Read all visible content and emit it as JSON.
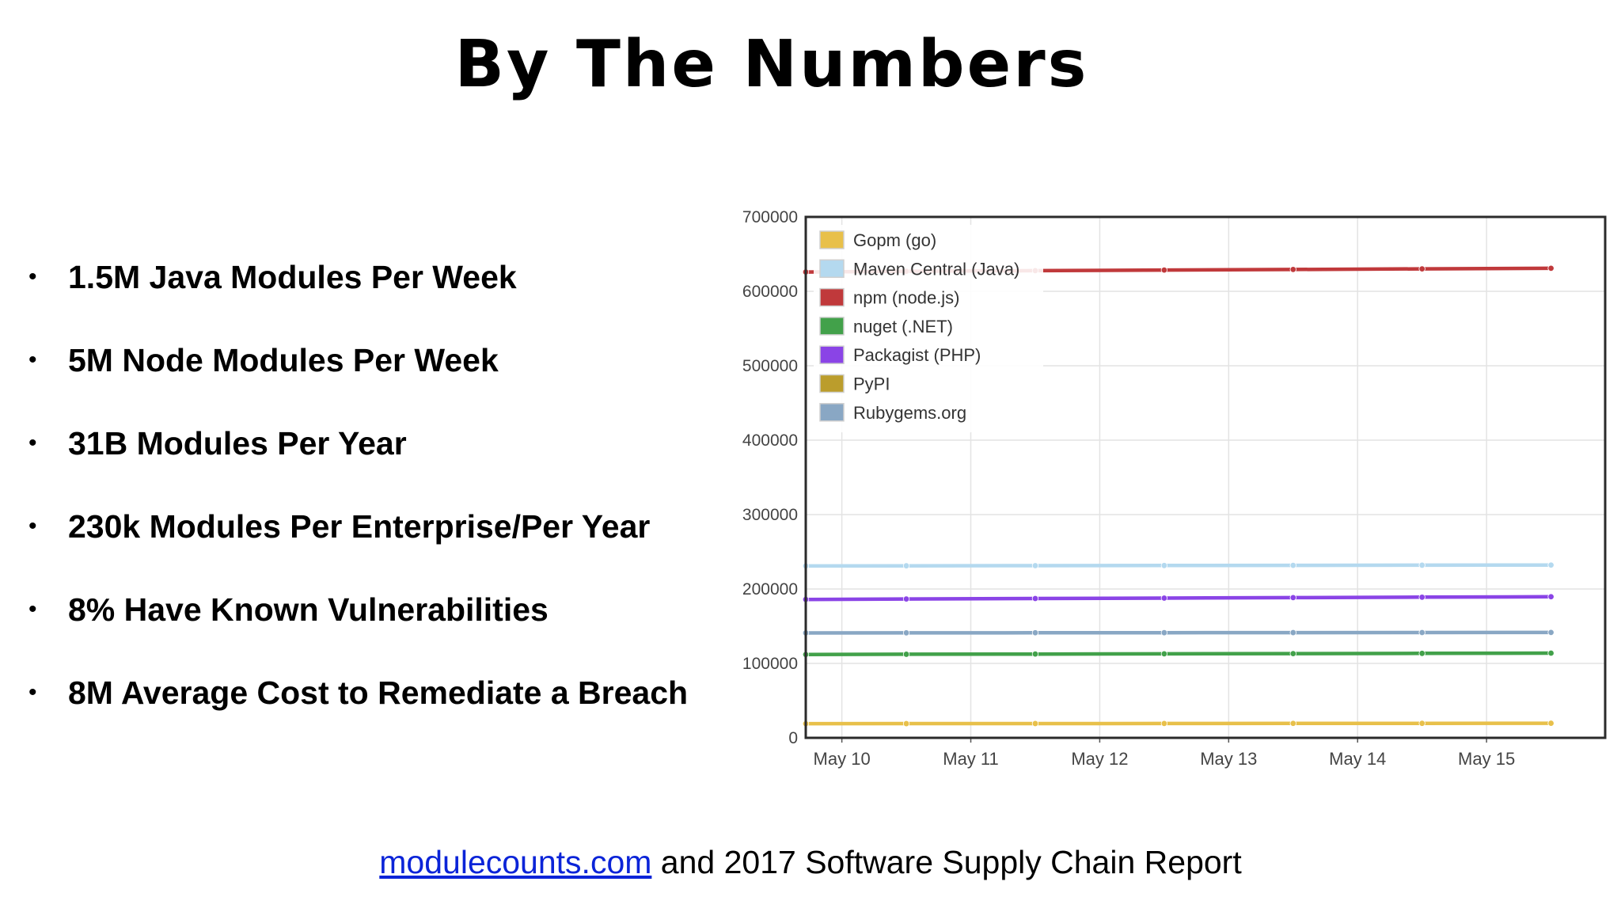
{
  "slide": {
    "title": "By The Numbers",
    "bullets": [
      "1.5M Java Modules Per Week",
      "5M Node Modules Per Week",
      "31B Modules Per Year",
      "230k Modules Per Enterprise/Per Year",
      "8% Have Known Vulnerabilities",
      "8M Average Cost to Remediate a Breach"
    ],
    "bullet_glyph": "•",
    "footer": {
      "link_text": "modulecounts.com",
      "rest_text": " and 2017 Software Supply Chain Report",
      "link_color": "#0b24d8"
    }
  },
  "chart_data": {
    "type": "line",
    "title": "",
    "xlabel": "",
    "ylabel": "",
    "x_ticks": [
      "May 10",
      "May 11",
      "May 12",
      "May 13",
      "May 14",
      "May 15"
    ],
    "x_range": [
      "May 9.7",
      "May 15.9"
    ],
    "x": [
      9.5,
      10.5,
      11.5,
      12.5,
      13.5,
      14.5,
      15.5
    ],
    "ylim": [
      0,
      700000
    ],
    "y_ticks": [
      0,
      100000,
      200000,
      300000,
      400000,
      500000,
      600000,
      700000
    ],
    "grid": true,
    "legend_position": "top-left",
    "series": [
      {
        "name": "Gopm (go)",
        "color": "#e8c04a",
        "values": [
          19000,
          19100,
          19200,
          19300,
          19400,
          19500,
          19600
        ]
      },
      {
        "name": "Maven Central (Java)",
        "color": "#b4d9ef",
        "values": [
          231000,
          231200,
          231400,
          231600,
          231800,
          232000,
          232200
        ]
      },
      {
        "name": "npm (node.js)",
        "color": "#c0393b",
        "values": [
          626000,
          627000,
          627800,
          628600,
          629400,
          630200,
          631000
        ]
      },
      {
        "name": "nuget (.NET)",
        "color": "#42a14a",
        "values": [
          112000,
          112300,
          112600,
          112900,
          113200,
          113500,
          113800
        ]
      },
      {
        "name": "Packagist (PHP)",
        "color": "#8a44e6",
        "values": [
          186000,
          186600,
          187200,
          187800,
          188400,
          189000,
          189600
        ]
      },
      {
        "name": "PyPI",
        "color": "#bb9d2c",
        "values": [
          null,
          null,
          null,
          null,
          null,
          null,
          null
        ]
      },
      {
        "name": "Rubygems.org",
        "color": "#89a7c4",
        "values": [
          141000,
          141100,
          141200,
          141300,
          141400,
          141500,
          141600
        ]
      }
    ]
  }
}
